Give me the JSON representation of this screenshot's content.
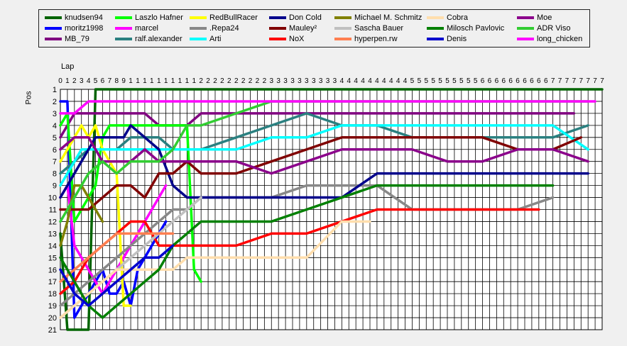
{
  "chart_data": {
    "type": "line",
    "title": "",
    "xlabel": "Lap",
    "ylabel": "Pos",
    "x_ticks": [
      "0",
      "1",
      "2",
      "3",
      "4",
      "5",
      "6",
      "7",
      "8",
      "9",
      "1",
      "1",
      "1",
      "1",
      "1",
      "1",
      "1",
      "1",
      "1",
      "1",
      "2",
      "2",
      "2",
      "2",
      "2",
      "2",
      "2",
      "2",
      "2",
      "2",
      "3",
      "3",
      "3",
      "3",
      "3",
      "3",
      "3",
      "3",
      "3",
      "3",
      "4",
      "4",
      "4",
      "4",
      "4",
      "4",
      "4",
      "4",
      "4",
      "4",
      "5",
      "5",
      "5",
      "5",
      "5",
      "5",
      "5",
      "5",
      "5",
      "5",
      "6",
      "6",
      "6",
      "6",
      "6",
      "6",
      "6",
      "6",
      "6",
      "6",
      "7",
      "7",
      "7",
      "7",
      "7",
      "7",
      "7",
      "7"
    ],
    "y_ticks": [
      "1",
      "2",
      "3",
      "4",
      "5",
      "6",
      "7",
      "8",
      "9",
      "10",
      "11",
      "12",
      "13",
      "14",
      "15",
      "16",
      "17",
      "18",
      "19",
      "20",
      "21"
    ],
    "ylim": [
      1,
      21
    ],
    "xlim": [
      0,
      77
    ],
    "grid": true,
    "legend_position": "top",
    "series": [
      {
        "name": "knudsen94",
        "color": "#006400",
        "laps": [
          0,
          1,
          2,
          3,
          4,
          5,
          6,
          7,
          8,
          9,
          10,
          11,
          12,
          13,
          14,
          15,
          16,
          17,
          18,
          19,
          20,
          40,
          50,
          60,
          77
        ],
        "positions": [
          13,
          21,
          21,
          21,
          21,
          1,
          1,
          1,
          1,
          1,
          1,
          1,
          1,
          1,
          1,
          1,
          1,
          1,
          1,
          1,
          1,
          1,
          1,
          1,
          1
        ]
      },
      {
        "name": "moritz1998",
        "color": "#0000ff",
        "laps": [
          0,
          1,
          2,
          3,
          4,
          5,
          6,
          7,
          8,
          9,
          10,
          11,
          12,
          13,
          14,
          15
        ],
        "positions": [
          2,
          2,
          20,
          19,
          18,
          17,
          16,
          18,
          18,
          17,
          19,
          16,
          15,
          14,
          13,
          12
        ]
      },
      {
        "name": "MB_79",
        "color": "#800080",
        "laps": [
          0,
          1,
          2,
          3,
          4,
          5,
          6,
          7,
          8,
          9,
          10,
          12,
          14,
          16,
          18,
          20,
          25,
          30,
          35,
          40,
          45,
          50,
          55,
          60,
          65,
          70,
          73
        ],
        "positions": [
          5,
          4,
          3,
          3,
          3,
          3,
          3,
          3,
          3,
          3,
          3,
          3,
          4,
          4,
          4,
          3,
          3,
          3,
          3,
          3,
          3,
          3,
          3,
          3,
          3,
          3,
          3
        ]
      },
      {
        "name": "Laszlo Hafner",
        "color": "#00ff00",
        "laps": [
          0,
          1,
          2,
          3,
          4,
          5,
          6,
          7,
          8,
          9,
          10,
          11,
          12,
          13,
          14,
          15,
          16,
          17,
          18,
          19,
          20
        ],
        "positions": [
          4,
          3,
          12,
          11,
          10,
          9,
          5,
          4,
          4,
          4,
          4,
          4,
          4,
          4,
          4,
          4,
          4,
          4,
          4,
          16,
          17
        ]
      },
      {
        "name": "marcel",
        "color": "#ff00ff",
        "laps": [
          0,
          1,
          2,
          3,
          4,
          5,
          6,
          7,
          8,
          9,
          10,
          11,
          12,
          13,
          14,
          15
        ],
        "positions": [
          10,
          9,
          14,
          15,
          16,
          17,
          18,
          17,
          16,
          15,
          14,
          13,
          12,
          11,
          10,
          9
        ]
      },
      {
        "name": "ralf.alexander",
        "color": "#2a8080",
        "laps": [
          0,
          2,
          4,
          6,
          8,
          10,
          12,
          14,
          16,
          18,
          20,
          25,
          30,
          35,
          40,
          45,
          50,
          55,
          60,
          65,
          70,
          75
        ],
        "positions": [
          8,
          7,
          6,
          6,
          6,
          5,
          5,
          5,
          6,
          6,
          6,
          5,
          4,
          3,
          4,
          4,
          5,
          5,
          5,
          5,
          5,
          4
        ]
      },
      {
        "name": "RedBullRacer",
        "color": "#ffff00",
        "laps": [
          0,
          1,
          2,
          3,
          4,
          5,
          6,
          7,
          8,
          9,
          10
        ],
        "positions": [
          7,
          6,
          5,
          4,
          5,
          4,
          6,
          7,
          8,
          19,
          19
        ]
      },
      {
        "name": ".Repa24",
        "color": "#888888",
        "laps": [
          0,
          2,
          4,
          6,
          8,
          10,
          12,
          14,
          16,
          18,
          20,
          25,
          30,
          35,
          40,
          45,
          50,
          55,
          60,
          65,
          70
        ],
        "positions": [
          19,
          18,
          17,
          16,
          15,
          14,
          13,
          12,
          11,
          11,
          10,
          10,
          10,
          9,
          9,
          9,
          11,
          11,
          11,
          11,
          10
        ]
      },
      {
        "name": "Arti",
        "color": "#00ffff",
        "laps": [
          0,
          1,
          2,
          3,
          4,
          5,
          6,
          7,
          8,
          9,
          10,
          15,
          20,
          25,
          30,
          35,
          40,
          45,
          50,
          55,
          60,
          65,
          70,
          75
        ],
        "positions": [
          9,
          8,
          7,
          6,
          6,
          6,
          6,
          6,
          6,
          6,
          6,
          6,
          6,
          6,
          5,
          5,
          4,
          4,
          4,
          4,
          4,
          4,
          4,
          6
        ]
      },
      {
        "name": "Don Cold",
        "color": "#00008b",
        "laps": [
          0,
          1,
          2,
          3,
          4,
          5,
          6,
          7,
          8,
          9,
          10,
          12,
          14,
          16,
          18,
          20,
          25,
          30,
          35,
          40,
          45,
          50,
          55,
          60,
          65,
          70,
          75
        ],
        "positions": [
          10,
          9,
          8,
          7,
          6,
          5,
          5,
          5,
          5,
          5,
          4,
          5,
          6,
          9,
          10,
          10,
          10,
          10,
          10,
          10,
          8,
          8,
          8,
          8,
          8,
          8,
          8
        ]
      },
      {
        "name": "Mauley²",
        "color": "#800000",
        "laps": [
          0,
          2,
          4,
          6,
          8,
          10,
          12,
          14,
          16,
          18,
          20,
          25,
          30,
          35,
          40,
          45,
          50,
          55,
          60,
          65,
          70,
          74
        ],
        "positions": [
          11,
          11,
          11,
          10,
          9,
          9,
          10,
          8,
          8,
          7,
          8,
          8,
          7,
          6,
          5,
          5,
          5,
          5,
          5,
          6,
          6,
          5
        ]
      },
      {
        "name": "NoX",
        "color": "#ff0000",
        "laps": [
          0,
          2,
          4,
          6,
          8,
          10,
          12,
          14,
          16,
          18,
          20,
          25,
          30,
          35,
          40,
          45,
          50,
          55,
          60,
          65,
          68
        ],
        "positions": [
          18,
          17,
          15,
          14,
          13,
          12,
          12,
          14,
          14,
          14,
          14,
          14,
          13,
          13,
          12,
          11,
          11,
          11,
          11,
          11,
          11
        ]
      },
      {
        "name": "Michael M. Schmitz",
        "color": "#808000",
        "laps": [
          0,
          1,
          2,
          3,
          4,
          5,
          6
        ],
        "positions": [
          14,
          12,
          9,
          9,
          10,
          11,
          12
        ]
      },
      {
        "name": "Sascha Bauer",
        "color": "#c0c0c0",
        "laps": [
          0,
          2,
          4,
          6,
          8,
          10,
          12,
          14,
          16,
          18,
          20
        ],
        "positions": [
          20,
          19,
          18,
          17,
          16,
          15,
          14,
          13,
          12,
          11,
          10
        ]
      },
      {
        "name": "hyperpen.rw",
        "color": "#ff7f50",
        "laps": [
          0,
          2,
          4,
          6,
          8,
          10,
          12,
          14,
          16
        ],
        "positions": [
          17,
          16,
          15,
          14,
          13,
          13,
          13,
          13,
          13
        ]
      },
      {
        "name": "Cobra",
        "color": "#ffdead",
        "laps": [
          0,
          2,
          4,
          6,
          8,
          10,
          12,
          14,
          16,
          18,
          20,
          25,
          30,
          35,
          40,
          44
        ],
        "positions": [
          20,
          19,
          18,
          17,
          16,
          16,
          16,
          16,
          16,
          15,
          15,
          15,
          15,
          15,
          12,
          12
        ]
      },
      {
        "name": "Milosch Pavlovic",
        "color": "#008000",
        "laps": [
          0,
          2,
          4,
          6,
          8,
          10,
          12,
          14,
          16,
          18,
          20,
          25,
          30,
          35,
          40,
          45,
          50,
          55,
          60,
          65,
          70
        ],
        "positions": [
          15,
          17,
          19,
          20,
          19,
          18,
          17,
          16,
          14,
          13,
          12,
          12,
          12,
          11,
          10,
          9,
          9,
          9,
          9,
          9,
          9
        ]
      },
      {
        "name": "Denis",
        "color": "#0000cd",
        "laps": [
          0,
          2,
          4,
          6,
          8,
          10,
          12,
          14,
          16
        ],
        "positions": [
          16,
          18,
          19,
          18,
          17,
          16,
          15,
          15,
          14
        ]
      },
      {
        "name": "Moe",
        "color": "#8b008b",
        "laps": [
          0,
          2,
          4,
          6,
          8,
          10,
          12,
          14,
          16,
          18,
          20,
          25,
          30,
          35,
          40,
          45,
          50,
          55,
          60,
          65,
          70,
          75
        ],
        "positions": [
          6,
          5,
          5,
          7,
          7,
          7,
          6,
          7,
          7,
          7,
          7,
          7,
          8,
          7,
          6,
          6,
          6,
          7,
          7,
          6,
          6,
          7
        ]
      },
      {
        "name": "ADR Viso",
        "color": "#32cd32",
        "laps": [
          0,
          2,
          4,
          6,
          8,
          10,
          12,
          14,
          16,
          18,
          20,
          25,
          30,
          35,
          40,
          45,
          50,
          55,
          60,
          65,
          70,
          75
        ],
        "positions": [
          12,
          10,
          8,
          7,
          8,
          7,
          7,
          7,
          6,
          4,
          4,
          3,
          2,
          2,
          2,
          2,
          2,
          2,
          2,
          2,
          2,
          2
        ]
      },
      {
        "name": "long_chicken",
        "color": "#ff00ff",
        "laps": [
          0,
          2,
          4,
          6,
          8,
          10,
          12,
          14,
          16,
          18,
          20,
          25,
          30,
          35,
          40,
          45,
          50,
          55,
          60,
          65,
          70,
          76
        ],
        "positions": [
          3,
          3,
          2,
          2,
          2,
          2,
          2,
          2,
          2,
          2,
          2,
          2,
          2,
          2,
          2,
          2,
          2,
          2,
          2,
          2,
          2,
          2
        ]
      }
    ]
  }
}
